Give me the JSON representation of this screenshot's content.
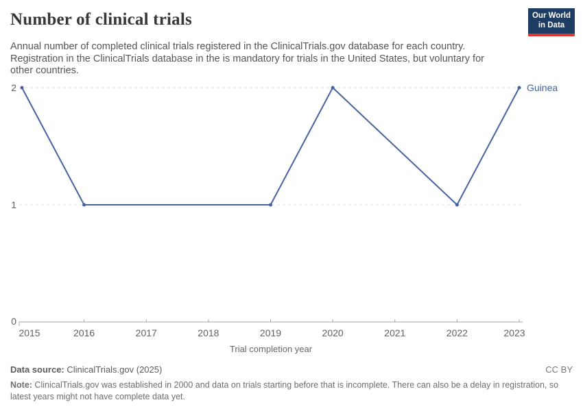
{
  "header": {
    "title": "Number of clinical trials",
    "subtitle_lines": [
      "Annual number of completed clinical trials registered in the ClinicalTrials.gov database for each country.",
      "Registration in the ClinicalTrials database in the is mandatory for trials in the United States, but voluntary for",
      "other countries."
    ],
    "logo": {
      "line1": "Our World",
      "line2": "in Data",
      "bg_color": "#1d3d63",
      "accent_color": "#dc3831"
    }
  },
  "chart_data": {
    "type": "line",
    "title": "Number of clinical trials",
    "xlabel": "Trial completion year",
    "ylabel": "",
    "xlim": [
      2015,
      2023
    ],
    "ylim": [
      0,
      2
    ],
    "x_ticks": [
      2015,
      2016,
      2017,
      2018,
      2019,
      2020,
      2021,
      2022,
      2023
    ],
    "y_ticks": [
      0,
      1,
      2
    ],
    "grid": "horizontal-dashed",
    "legend_position": "end-of-line-label",
    "series": [
      {
        "name": "Guinea",
        "color": "#4662a0",
        "x": [
          2015,
          2016,
          2019,
          2020,
          2022,
          2023
        ],
        "y": [
          2,
          1,
          1,
          2,
          1,
          2
        ]
      }
    ],
    "end_label": "Guinea"
  },
  "footer": {
    "datasource_label": "Data source:",
    "datasource_value": " ClinicalTrials.gov (2025)",
    "license": "CC BY",
    "note_label": "Note:",
    "note_value": " ClinicalTrials.gov was established in 2000 and data on trials starting before that is incomplete. There can also be a delay in registration, so latest years might not have complete data yet."
  },
  "colors": {
    "line": "#4662a0",
    "gridline": "#dcdcdc",
    "axis": "#a5a5a5",
    "tick_label": "#606060",
    "axis_title": "#666666"
  }
}
